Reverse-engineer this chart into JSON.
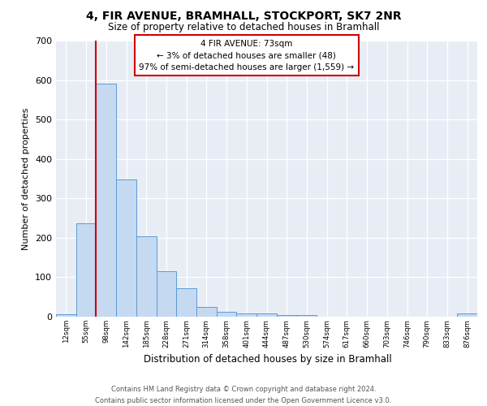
{
  "title": "4, FIR AVENUE, BRAMHALL, STOCKPORT, SK7 2NR",
  "subtitle": "Size of property relative to detached houses in Bramhall",
  "xlabel": "Distribution of detached houses by size in Bramhall",
  "ylabel": "Number of detached properties",
  "bar_color": "#c5d9f1",
  "bar_edge_color": "#5b9bd5",
  "categories": [
    "12sqm",
    "55sqm",
    "98sqm",
    "142sqm",
    "185sqm",
    "228sqm",
    "271sqm",
    "314sqm",
    "358sqm",
    "401sqm",
    "444sqm",
    "487sqm",
    "530sqm",
    "574sqm",
    "617sqm",
    "660sqm",
    "703sqm",
    "746sqm",
    "790sqm",
    "833sqm",
    "876sqm"
  ],
  "values": [
    6,
    237,
    590,
    348,
    203,
    115,
    72,
    25,
    13,
    9,
    8,
    5,
    4,
    0,
    0,
    0,
    0,
    0,
    0,
    0,
    8
  ],
  "ylim": [
    0,
    700
  ],
  "yticks": [
    0,
    100,
    200,
    300,
    400,
    500,
    600,
    700
  ],
  "red_line_x": 1.5,
  "annotation_line1": "4 FIR AVENUE: 73sqm",
  "annotation_line2": "← 3% of detached houses are smaller (48)",
  "annotation_line3": "97% of semi-detached houses are larger (1,559) →",
  "annotation_box_facecolor": "#ffffff",
  "annotation_box_edgecolor": "#cc0000",
  "red_line_color": "#cc0000",
  "footer_line1": "Contains HM Land Registry data © Crown copyright and database right 2024.",
  "footer_line2": "Contains public sector information licensed under the Open Government Licence v3.0.",
  "background_color": "#ffffff",
  "plot_bg_color": "#e8edf5"
}
